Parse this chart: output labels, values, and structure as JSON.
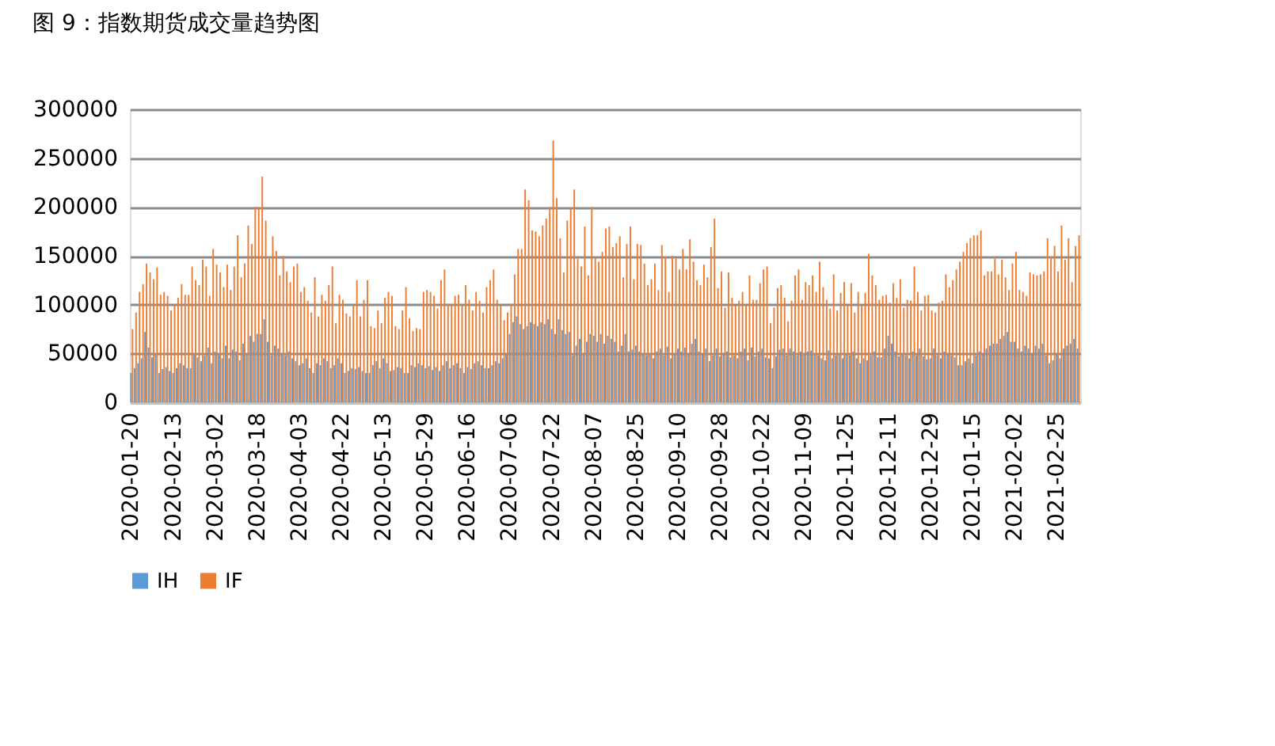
{
  "chart_data": {
    "type": "bar",
    "title": "图 9：指数期货成交量趋势图",
    "categories": [
      "2020-01-20",
      null,
      null,
      null,
      null,
      null,
      null,
      null,
      null,
      null,
      null,
      null,
      "2020-02-13",
      null,
      null,
      null,
      null,
      null,
      null,
      null,
      null,
      null,
      null,
      null,
      "2020-03-02",
      null,
      null,
      null,
      null,
      null,
      null,
      null,
      null,
      null,
      null,
      null,
      "2020-03-18",
      null,
      null,
      null,
      null,
      null,
      null,
      null,
      null,
      null,
      null,
      null,
      "2020-04-03",
      null,
      null,
      null,
      null,
      null,
      null,
      null,
      null,
      null,
      null,
      null,
      "2020-04-22",
      null,
      null,
      null,
      null,
      null,
      null,
      null,
      null,
      null,
      null,
      null,
      "2020-05-13",
      null,
      null,
      null,
      null,
      null,
      null,
      null,
      null,
      null,
      null,
      null,
      "2020-05-29",
      null,
      null,
      null,
      null,
      null,
      null,
      null,
      null,
      null,
      null,
      null,
      "2020-06-16",
      null,
      null,
      null,
      null,
      null,
      null,
      null,
      null,
      null,
      null,
      null,
      "2020-07-06",
      null,
      null,
      null,
      null,
      null,
      null,
      null,
      null,
      null,
      null,
      null,
      "2020-07-22",
      null,
      null,
      null,
      null,
      null,
      null,
      null,
      null,
      null,
      null,
      null,
      "2020-08-07",
      null,
      null,
      null,
      null,
      null,
      null,
      null,
      null,
      null,
      null,
      null,
      "2020-08-25",
      null,
      null,
      null,
      null,
      null,
      null,
      null,
      null,
      null,
      null,
      null,
      "2020-09-10",
      null,
      null,
      null,
      null,
      null,
      null,
      null,
      null,
      null,
      null,
      null,
      "2020-09-28",
      null,
      null,
      null,
      null,
      null,
      null,
      null,
      null,
      null,
      null,
      null,
      "2020-10-22",
      null,
      null,
      null,
      null,
      null,
      null,
      null,
      null,
      null,
      null,
      null,
      "2020-11-09",
      null,
      null,
      null,
      null,
      null,
      null,
      null,
      null,
      null,
      null,
      null,
      "2020-11-25",
      null,
      null,
      null,
      null,
      null,
      null,
      null,
      null,
      null,
      null,
      null,
      "2020-12-11",
      null,
      null,
      null,
      null,
      null,
      null,
      null,
      null,
      null,
      null,
      null,
      "2020-12-29",
      null,
      null,
      null,
      null,
      null,
      null,
      null,
      null,
      null,
      null,
      null,
      "2021-01-15",
      null,
      null,
      null,
      null,
      null,
      null,
      null,
      null,
      null,
      null,
      null,
      "2021-02-02",
      null,
      null,
      null,
      null,
      null,
      null,
      null,
      null,
      null,
      null,
      null,
      "2021-02-25",
      null,
      null,
      null,
      null,
      null,
      null
    ],
    "series": [
      {
        "name": "IH",
        "color": "#5b9bd5",
        "values": [
          30000,
          35000,
          40000,
          45000,
          72000,
          56000,
          46000,
          50000,
          30000,
          34000,
          36000,
          32000,
          30000,
          35000,
          40000,
          38000,
          35000,
          35000,
          50000,
          46000,
          42000,
          48000,
          56000,
          40000,
          52000,
          50000,
          45000,
          58000,
          45000,
          54000,
          52000,
          43000,
          60000,
          50000,
          68000,
          62000,
          70000,
          70000,
          85000,
          62000,
          48000,
          58000,
          55000,
          50000,
          48000,
          52000,
          45000,
          42000,
          38000,
          40000,
          45000,
          35000,
          30000,
          40000,
          38000,
          45000,
          42000,
          35000,
          38000,
          45000,
          40000,
          30000,
          32000,
          35000,
          34000,
          36000,
          32000,
          30000,
          30000,
          38000,
          42000,
          35000,
          45000,
          40000,
          32000,
          33000,
          36000,
          35000,
          30000,
          30000,
          38000,
          36000,
          40000,
          38000,
          35000,
          37000,
          33000,
          36000,
          32000,
          38000,
          42000,
          35000,
          38000,
          40000,
          35000,
          30000,
          36000,
          34000,
          40000,
          42000,
          38000,
          35000,
          35000,
          38000,
          42000,
          40000,
          45000,
          50000,
          70000,
          82000,
          88000,
          80000,
          75000,
          78000,
          82000,
          80000,
          78000,
          82000,
          80000,
          85000,
          75000,
          70000,
          85000,
          74000,
          70000,
          72000,
          48000,
          58000,
          65000,
          50000,
          62000,
          70000,
          68000,
          62000,
          70000,
          60000,
          68000,
          65000,
          62000,
          52000,
          58000,
          70000,
          52000,
          54000,
          58000,
          52000,
          50000,
          48000,
          50000,
          45000,
          52000,
          55000,
          48000,
          57000,
          45000,
          50000,
          55000,
          52000,
          56000,
          50000,
          60000,
          65000,
          52000,
          49000,
          55000,
          42000,
          48000,
          55000,
          47000,
          50000,
          52000,
          46000,
          48000,
          45000,
          52000,
          55000,
          43000,
          56000,
          47000,
          52000,
          55000,
          46000,
          45000,
          35000,
          47000,
          54000,
          55000,
          48000,
          55000,
          52000,
          48000,
          52000,
          50000,
          52000,
          53000,
          50000,
          48000,
          45000,
          43000,
          53000,
          45000,
          48000,
          50000,
          45000,
          49000,
          48000,
          52000,
          45000,
          40000,
          45000,
          43000,
          48000,
          52000,
          46000,
          46000,
          55000,
          68000,
          60000,
          52000,
          47000,
          50000,
          48000,
          45000,
          52000,
          48000,
          55000,
          47000,
          44000,
          45000,
          55000,
          48000,
          45000,
          52000,
          50000,
          48000,
          46000,
          38000,
          38000,
          42000,
          45000,
          40000,
          48000,
          52000,
          50000,
          55000,
          58000,
          60000,
          60000,
          65000,
          68000,
          72000,
          62000,
          62000,
          55000,
          52000,
          58000,
          55000,
          50000,
          58000,
          55000,
          60000,
          48000,
          40000,
          43000,
          50000,
          45000,
          55000,
          58000,
          60000,
          65000,
          55000
        ]
      },
      {
        "name": "IF",
        "color": "#ed7d31",
        "values": [
          75000,
          92000,
          113000,
          121000,
          142000,
          133000,
          126000,
          138000,
          110000,
          113000,
          109000,
          94000,
          99000,
          107000,
          121000,
          110000,
          110000,
          139000,
          125000,
          120000,
          146000,
          139000,
          109000,
          157000,
          141000,
          133000,
          118000,
          141000,
          115000,
          139000,
          171000,
          128000,
          142000,
          181000,
          162000,
          200000,
          200000,
          231000,
          186000,
          147000,
          170000,
          155000,
          130000,
          150000,
          134000,
          123000,
          139000,
          142000,
          113000,
          118000,
          104000,
          92000,
          128000,
          88000,
          110000,
          104000,
          120000,
          139000,
          81000,
          110000,
          105000,
          91000,
          88000,
          99000,
          125000,
          88000,
          105000,
          125000,
          78000,
          76000,
          94000,
          81000,
          107000,
          113000,
          109000,
          78000,
          75000,
          94000,
          118000,
          86000,
          73000,
          76000,
          75000,
          113000,
          115000,
          113000,
          109000,
          96000,
          125000,
          136000,
          101000,
          99000,
          109000,
          110000,
          99000,
          120000,
          105000,
          94000,
          113000,
          104000,
          92000,
          118000,
          125000,
          136000,
          105000,
          99000,
          84000,
          92000,
          101000,
          131000,
          157000,
          157000,
          218000,
          207000,
          176000,
          175000,
          170000,
          181000,
          188000,
          200000,
          268000,
          209000,
          168000,
          133000,
          186000,
          199000,
          218000,
          147000,
          139000,
          180000,
          130000,
          200000,
          149000,
          144000,
          154000,
          178000,
          180000,
          159000,
          163000,
          170000,
          128000,
          162000,
          180000,
          126000,
          162000,
          161000,
          142000,
          120000,
          126000,
          142000,
          115000,
          161000,
          149000,
          113000,
          150000,
          147000,
          136000,
          157000,
          136000,
          167000,
          144000,
          125000,
          120000,
          141000,
          128000,
          159000,
          188000,
          117000,
          134000,
          97000,
          133000,
          107000,
          99000,
          104000,
          113000,
          99000,
          130000,
          105000,
          105000,
          122000,
          136000,
          139000,
          81000,
          97000,
          117000,
          120000,
          107000,
          83000,
          104000,
          130000,
          136000,
          105000,
          123000,
          120000,
          130000,
          113000,
          144000,
          118000,
          105000,
          96000,
          131000,
          94000,
          112000,
          123000,
          99000,
          122000,
          92000,
          113000,
          99000,
          112000,
          152000,
          130000,
          120000,
          105000,
          109000,
          110000,
          102000,
          122000,
          107000,
          126000,
          97000,
          105000,
          104000,
          139000,
          113000,
          94000,
          109000,
          110000,
          94000,
          92000,
          102000,
          104000,
          131000,
          118000,
          125000,
          136000,
          144000,
          154000,
          163000,
          168000,
          171000,
          171000,
          176000,
          130000,
          134000,
          134000,
          147000,
          131000,
          146000,
          128000,
          115000,
          142000,
          154000,
          115000,
          113000,
          109000,
          133000,
          131000,
          130000,
          131000,
          134000,
          168000,
          149000,
          160000,
          134000,
          181000,
          146000,
          168000,
          123000,
          160000,
          171000
        ]
      }
    ],
    "ylim": [
      0,
      300000
    ],
    "yticks": [
      0,
      50000,
      100000,
      150000,
      200000,
      250000,
      300000
    ],
    "grid": "y",
    "legend": "bottom"
  }
}
